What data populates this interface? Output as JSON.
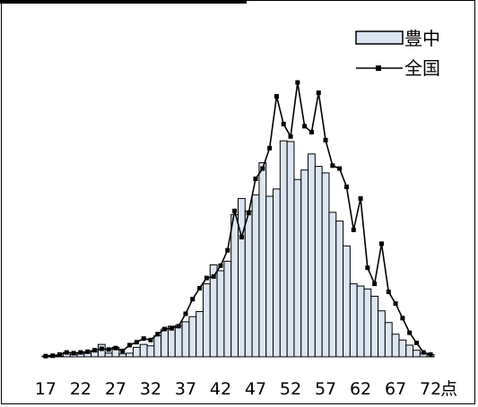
{
  "chart_data": {
    "type": "bar",
    "x_start": 17,
    "x_end": 72,
    "x_step": 1,
    "x_ticks": [
      17,
      22,
      27,
      32,
      37,
      42,
      47,
      52,
      57,
      62,
      67,
      72
    ],
    "x_unit": "点",
    "y_axis": "hidden",
    "grid": false,
    "legend_position": "top-right",
    "series": [
      {
        "name": "豊中",
        "style": "bar",
        "color": "#dce6f2",
        "values": [
          0.1,
          0.2,
          0.1,
          0.6,
          0.3,
          0.4,
          0.5,
          0.7,
          1.7,
          0.5,
          1.3,
          0.4,
          0.5,
          1.3,
          1.7,
          1.5,
          2.9,
          3.8,
          4.2,
          4.3,
          4.8,
          5.5,
          6.2,
          10.0,
          12.6,
          11.8,
          13.1,
          19.5,
          21.7,
          20.0,
          22.2,
          26.6,
          22.0,
          23.0,
          29.6,
          29.5,
          24.3,
          25.6,
          27.8,
          26.1,
          25.2,
          19.8,
          18.6,
          15.2,
          10.0,
          9.7,
          9.3,
          8.3,
          6.3,
          4.7,
          3.1,
          2.3,
          1.6,
          0.9,
          0.5,
          0.3
        ]
      },
      {
        "name": "全国",
        "style": "line",
        "color": "#000000",
        "values": [
          0.1,
          0.15,
          0.3,
          0.6,
          0.5,
          0.6,
          0.7,
          0.9,
          1.1,
          1.0,
          1.2,
          0.8,
          1.6,
          2.0,
          2.5,
          2.3,
          3.1,
          3.8,
          3.9,
          4.2,
          5.9,
          7.9,
          9.4,
          10.8,
          11.0,
          12.5,
          14.6,
          20.0,
          16.4,
          19.7,
          24.4,
          25.8,
          28.6,
          35.7,
          31.9,
          30.2,
          37.6,
          31.6,
          30.8,
          36.2,
          29.7,
          26.2,
          25.8,
          23.3,
          17.4,
          21.7,
          12.2,
          10.0,
          15.5,
          8.9,
          7.3,
          5.3,
          3.3,
          1.9,
          0.6,
          0.3
        ]
      }
    ]
  },
  "legend": [
    {
      "label": "豊中"
    },
    {
      "label": "全国"
    }
  ]
}
